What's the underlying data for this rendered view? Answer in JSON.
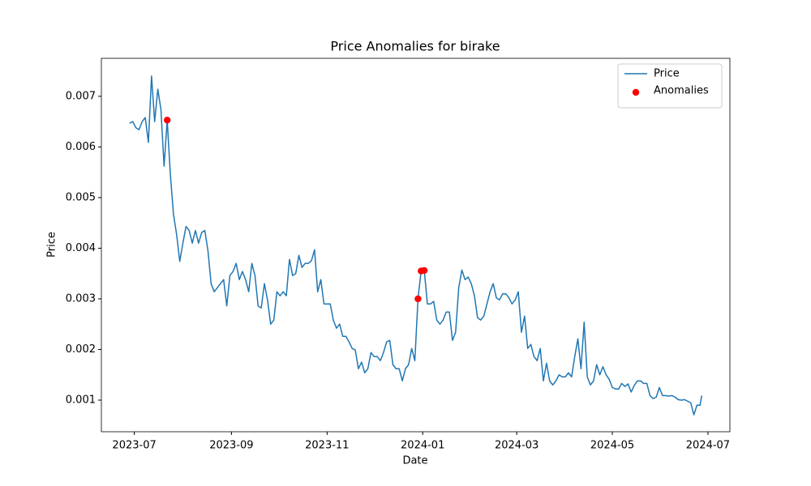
{
  "chart_data": {
    "type": "line",
    "title": "Price Anomalies for birake",
    "xlabel": "Date",
    "ylabel": "Price",
    "legend": "upper right",
    "xlim": [
      "2023-06-10",
      "2024-07-15"
    ],
    "xticks": [
      {
        "value": "2023-07-01",
        "label": "2023-07"
      },
      {
        "value": "2023-09-01",
        "label": "2023-09"
      },
      {
        "value": "2023-11-01",
        "label": "2023-11"
      },
      {
        "value": "2024-01-01",
        "label": "2024-01"
      },
      {
        "value": "2024-03-01",
        "label": "2024-03"
      },
      {
        "value": "2024-05-01",
        "label": "2024-05"
      },
      {
        "value": "2024-07-01",
        "label": "2024-07"
      }
    ],
    "ylim": [
      0.000376,
      0.00775
    ],
    "yticks": [
      0.001,
      0.002,
      0.003,
      0.004,
      0.005,
      0.006,
      0.007
    ],
    "series": [
      {
        "name": "Price",
        "color": "#1f77b4",
        "type": "line",
        "x": [
          "2023-06-28",
          "2023-06-30",
          "2023-07-02",
          "2023-07-04",
          "2023-07-06",
          "2023-07-08",
          "2023-07-10",
          "2023-07-12",
          "2023-07-14",
          "2023-07-16",
          "2023-07-18",
          "2023-07-20",
          "2023-07-22",
          "2023-07-24",
          "2023-07-26",
          "2023-07-28",
          "2023-07-30",
          "2023-08-01",
          "2023-08-03",
          "2023-08-05",
          "2023-08-07",
          "2023-08-09",
          "2023-08-11",
          "2023-08-13",
          "2023-08-15",
          "2023-08-17",
          "2023-08-19",
          "2023-08-21",
          "2023-08-23",
          "2023-08-25",
          "2023-08-27",
          "2023-08-29",
          "2023-08-31",
          "2023-09-02",
          "2023-09-04",
          "2023-09-06",
          "2023-09-08",
          "2023-09-10",
          "2023-09-12",
          "2023-09-14",
          "2023-09-16",
          "2023-09-18",
          "2023-09-20",
          "2023-09-22",
          "2023-09-24",
          "2023-09-26",
          "2023-09-28",
          "2023-09-30",
          "2023-10-02",
          "2023-10-04",
          "2023-10-06",
          "2023-10-08",
          "2023-10-10",
          "2023-10-12",
          "2023-10-14",
          "2023-10-16",
          "2023-10-18",
          "2023-10-20",
          "2023-10-22",
          "2023-10-24",
          "2023-10-26",
          "2023-10-28",
          "2023-10-30",
          "2023-11-01",
          "2023-11-03",
          "2023-11-05",
          "2023-11-07",
          "2023-11-09",
          "2023-11-11",
          "2023-11-13",
          "2023-11-15",
          "2023-11-17",
          "2023-11-19",
          "2023-11-21",
          "2023-11-23",
          "2023-11-25",
          "2023-11-27",
          "2023-11-29",
          "2023-12-01",
          "2023-12-03",
          "2023-12-05",
          "2023-12-07",
          "2023-12-09",
          "2023-12-11",
          "2023-12-13",
          "2023-12-15",
          "2023-12-17",
          "2023-12-19",
          "2023-12-21",
          "2023-12-23",
          "2023-12-25",
          "2023-12-27",
          "2023-12-29",
          "2023-12-31",
          "2024-01-02",
          "2024-01-04",
          "2024-01-06",
          "2024-01-08",
          "2024-01-10",
          "2024-01-12",
          "2024-01-14",
          "2024-01-16",
          "2024-01-18",
          "2024-01-20",
          "2024-01-22",
          "2024-01-24",
          "2024-01-26",
          "2024-01-28",
          "2024-01-30",
          "2024-02-01",
          "2024-02-03",
          "2024-02-05",
          "2024-02-07",
          "2024-02-09",
          "2024-02-11",
          "2024-02-13",
          "2024-02-15",
          "2024-02-17",
          "2024-02-19",
          "2024-02-21",
          "2024-02-23",
          "2024-02-25",
          "2024-02-27",
          "2024-02-29",
          "2024-03-02",
          "2024-03-04",
          "2024-03-06",
          "2024-03-08",
          "2024-03-10",
          "2024-03-12",
          "2024-03-14",
          "2024-03-16",
          "2024-03-18",
          "2024-03-20",
          "2024-03-22",
          "2024-03-24",
          "2024-03-26",
          "2024-03-28",
          "2024-03-30",
          "2024-04-01",
          "2024-04-03",
          "2024-04-05",
          "2024-04-07",
          "2024-04-09",
          "2024-04-11",
          "2024-04-13",
          "2024-04-15",
          "2024-04-17",
          "2024-04-19",
          "2024-04-21",
          "2024-04-23",
          "2024-04-25",
          "2024-04-27",
          "2024-04-29",
          "2024-05-01",
          "2024-05-03",
          "2024-05-05",
          "2024-05-07",
          "2024-05-09",
          "2024-05-11",
          "2024-05-13",
          "2024-05-15",
          "2024-05-17",
          "2024-05-19",
          "2024-05-21",
          "2024-05-23",
          "2024-05-25",
          "2024-05-27",
          "2024-05-29",
          "2024-05-31",
          "2024-06-02",
          "2024-06-04",
          "2024-06-06",
          "2024-06-08",
          "2024-06-10",
          "2024-06-12",
          "2024-06-14",
          "2024-06-16",
          "2024-06-18",
          "2024-06-20",
          "2024-06-22",
          "2024-06-24",
          "2024-06-26",
          "2024-06-27"
        ],
        "values": [
          0.00647,
          0.0065,
          0.00638,
          0.00634,
          0.0065,
          0.00658,
          0.00609,
          0.0074,
          0.0065,
          0.00714,
          0.00674,
          0.00562,
          0.00653,
          0.00546,
          0.00467,
          0.00427,
          0.00374,
          0.0041,
          0.00443,
          0.00435,
          0.0041,
          0.00435,
          0.0041,
          0.00431,
          0.00435,
          0.00395,
          0.0033,
          0.00314,
          0.00322,
          0.0033,
          0.00338,
          0.00286,
          0.00346,
          0.00354,
          0.0037,
          0.00338,
          0.00354,
          0.00338,
          0.00314,
          0.0037,
          0.00346,
          0.00286,
          0.00282,
          0.0033,
          0.00298,
          0.0025,
          0.00258,
          0.00314,
          0.00306,
          0.00314,
          0.00306,
          0.00378,
          0.00346,
          0.0035,
          0.00386,
          0.00362,
          0.0037,
          0.0037,
          0.00375,
          0.00397,
          0.00314,
          0.00338,
          0.0029,
          0.0029,
          0.0029,
          0.00258,
          0.00242,
          0.0025,
          0.00226,
          0.00226,
          0.00215,
          0.00202,
          0.00199,
          0.00162,
          0.00175,
          0.00154,
          0.00162,
          0.00194,
          0.00186,
          0.00186,
          0.00178,
          0.00194,
          0.00215,
          0.00218,
          0.0017,
          0.00162,
          0.00162,
          0.00138,
          0.00162,
          0.0017,
          0.00202,
          0.00178,
          0.003,
          0.00355,
          0.00356,
          0.0029,
          0.0029,
          0.00295,
          0.00258,
          0.0025,
          0.00258,
          0.00274,
          0.00274,
          0.00218,
          0.00234,
          0.00322,
          0.00357,
          0.00338,
          0.00343,
          0.0033,
          0.00306,
          0.00263,
          0.00258,
          0.00266,
          0.0029,
          0.00314,
          0.0033,
          0.00302,
          0.00298,
          0.0031,
          0.0031,
          0.00302,
          0.0029,
          0.00298,
          0.00314,
          0.00234,
          0.00266,
          0.00202,
          0.0021,
          0.00186,
          0.00178,
          0.00202,
          0.00138,
          0.00173,
          0.00138,
          0.0013,
          0.00138,
          0.0015,
          0.00146,
          0.00146,
          0.00154,
          0.00146,
          0.00186,
          0.00221,
          0.00162,
          0.00254,
          0.00146,
          0.0013,
          0.00138,
          0.0017,
          0.0015,
          0.00166,
          0.0015,
          0.00141,
          0.00125,
          0.00122,
          0.00122,
          0.00133,
          0.00127,
          0.00132,
          0.00116,
          0.00129,
          0.00138,
          0.00138,
          0.00133,
          0.00133,
          0.00109,
          0.00103,
          0.00106,
          0.00125,
          0.00109,
          0.00109,
          0.00108,
          0.00109,
          0.00106,
          0.00101,
          0.001,
          0.00101,
          0.00098,
          0.00095,
          0.00071,
          0.0009,
          0.0009,
          0.00109
        ]
      },
      {
        "name": "Anomalies",
        "color": "#ff0000",
        "type": "scatter",
        "x": [
          "2023-07-22",
          "2023-12-29",
          "2023-12-31",
          "2024-01-02"
        ],
        "values": [
          0.00653,
          0.003,
          0.00355,
          0.00356
        ]
      }
    ]
  }
}
